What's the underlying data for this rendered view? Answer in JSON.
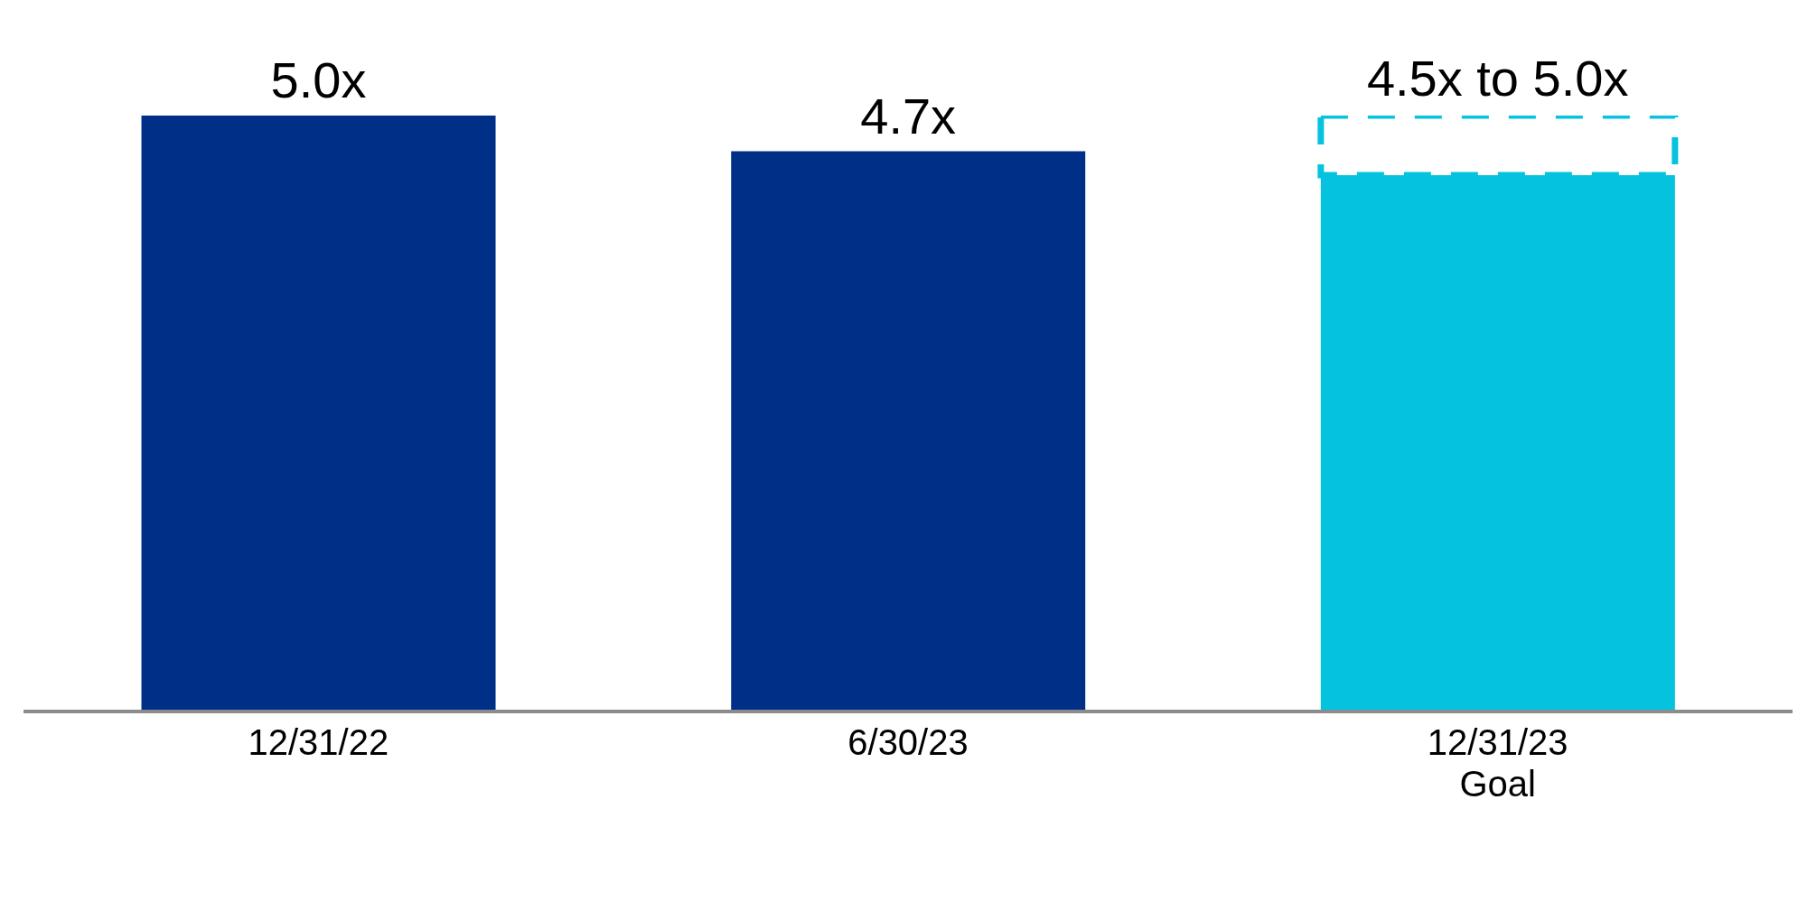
{
  "chart_data": {
    "type": "bar",
    "categories": [
      "12/31/22",
      "6/30/23",
      "12/31/23\nGoal"
    ],
    "stacked": true,
    "legend": false,
    "grid": false,
    "series": [
      {
        "colors": [
          "#002f87",
          "#002f87",
          "#05c3de"
        ],
        "values": [
          5.0,
          4.7,
          4.5
        ],
        "value_labels": [
          "5.0x",
          "4.7x",
          null
        ]
      },
      {
        "color": "#05c3de",
        "line_style": "dashed",
        "values": [
          null,
          null,
          0.5
        ]
      }
    ],
    "annotations": [
      {
        "text": "4.5x to 5.0x",
        "x": "12/31/23\nGoal",
        "y": 5.0
      }
    ]
  }
}
